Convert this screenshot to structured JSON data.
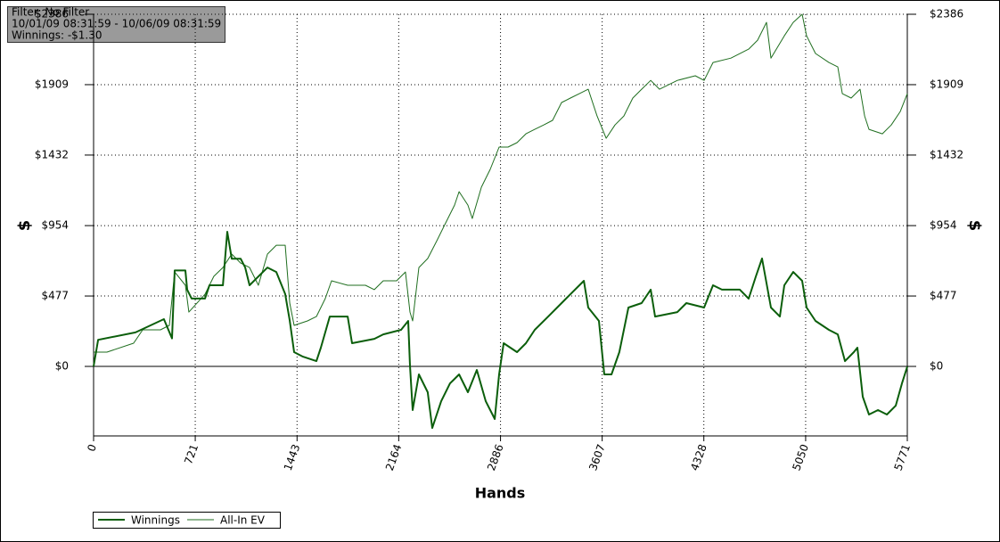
{
  "chart_data": {
    "type": "line",
    "annotations": [
      "Filter: No Filter",
      "10/01/09 08:31:59 - 10/06/09 08:31:59",
      "Winnings: -$1.30"
    ],
    "xlabel": "Hands",
    "ylabel": "$",
    "y2label": "$",
    "xlim": [
      0,
      5771
    ],
    "xticks": [
      0,
      721,
      1443,
      2164,
      2886,
      3607,
      4328,
      5050,
      5771
    ],
    "ylim": [
      -471,
      2386
    ],
    "yticks": [
      {
        "value": 0,
        "label": "$0"
      },
      {
        "value": 477,
        "label": "$477"
      },
      {
        "value": 954,
        "label": "$954"
      },
      {
        "value": 1432,
        "label": "$1432"
      },
      {
        "value": 1909,
        "label": "$1909"
      },
      {
        "value": 2386,
        "label": "$2386"
      }
    ],
    "y2lim": [
      -471,
      2386
    ],
    "y2ticks": [
      {
        "value": 0,
        "label": "$0"
      },
      {
        "value": 477,
        "label": "$477"
      },
      {
        "value": 954,
        "label": "$954"
      },
      {
        "value": 1432,
        "label": "$1432"
      },
      {
        "value": 1909,
        "label": "$1909"
      },
      {
        "value": 2386,
        "label": "$2386"
      }
    ],
    "grid": true,
    "legend": "bottom-left",
    "series": [
      {
        "name": "Winnings",
        "color": "#0b5e0b",
        "width": 2,
        "x": [
          0,
          32,
          297,
          499,
          556,
          575,
          651,
          664,
          695,
          790,
          822,
          917,
          948,
          980,
          1043,
          1075,
          1106,
          1233,
          1296,
          1359,
          1391,
          1422,
          1485,
          1580,
          1612,
          1675,
          1802,
          1833,
          1991,
          2054,
          2181,
          2231,
          2244,
          2263,
          2307,
          2370,
          2402,
          2465,
          2528,
          2592,
          2655,
          2718,
          2781,
          2845,
          2876,
          2908,
          3003,
          3066,
          3129,
          3224,
          3319,
          3382,
          3477,
          3508,
          3584,
          3622,
          3673,
          3729,
          3793,
          3887,
          3951,
          3982,
          4140,
          4204,
          4330,
          4393,
          4456,
          4583,
          4646,
          4697,
          4741,
          4804,
          4867,
          4899,
          4962,
          5025,
          5057,
          5120,
          5215,
          5278,
          5329,
          5392,
          5417,
          5455,
          5499,
          5563,
          5626,
          5689,
          5733,
          5771
        ],
        "values": [
          0,
          180,
          230,
          320,
          190,
          650,
          650,
          520,
          460,
          460,
          550,
          550,
          912,
          730,
          730,
          670,
          550,
          670,
          640,
          490,
          310,
          97,
          66,
          36,
          127,
          338,
          338,
          157,
          187,
          217,
          248,
          308,
          6,
          -296,
          -54,
          -175,
          -417,
          -236,
          -115,
          -54,
          -175,
          -24,
          -236,
          -356,
          -54,
          157,
          97,
          157,
          248,
          338,
          429,
          489,
          580,
          399,
          308,
          -54,
          -54,
          97,
          399,
          429,
          520,
          338,
          368,
          429,
          399,
          550,
          520,
          520,
          459,
          610,
          731,
          399,
          338,
          550,
          640,
          580,
          399,
          308,
          248,
          217,
          36,
          97,
          127,
          -205,
          -326,
          -296,
          -326,
          -266,
          -115,
          -1.3
        ]
      },
      {
        "name": "All-In EV",
        "color": "#1f6e1f",
        "width": 1,
        "x": [
          0,
          95,
          284,
          348,
          474,
          537,
          575,
          651,
          676,
          790,
          853,
          917,
          980,
          1043,
          1106,
          1169,
          1233,
          1264,
          1296,
          1359,
          1391,
          1422,
          1517,
          1580,
          1643,
          1688,
          1802,
          1928,
          1991,
          2054,
          2149,
          2212,
          2244,
          2263,
          2307,
          2370,
          2434,
          2497,
          2560,
          2592,
          2655,
          2686,
          2750,
          2813,
          2876,
          2939,
          3003,
          3066,
          3129,
          3192,
          3255,
          3319,
          3382,
          3445,
          3508,
          3571,
          3635,
          3698,
          3761,
          3824,
          3887,
          3951,
          4014,
          4140,
          4267,
          4330,
          4393,
          4520,
          4646,
          4709,
          4772,
          4804,
          4899,
          4962,
          5025,
          5057,
          5120,
          5215,
          5278,
          5310,
          5373,
          5436,
          5468,
          5499,
          5594,
          5657,
          5721,
          5771
        ],
        "values": [
          97,
          97,
          157,
          248,
          248,
          278,
          640,
          550,
          368,
          489,
          610,
          670,
          761,
          700,
          670,
          550,
          761,
          791,
          821,
          821,
          429,
          278,
          308,
          338,
          459,
          580,
          550,
          550,
          520,
          580,
          580,
          640,
          368,
          308,
          670,
          731,
          851,
          972,
          1093,
          1184,
          1093,
          1002,
          1214,
          1335,
          1486,
          1486,
          1516,
          1576,
          1606,
          1636,
          1667,
          1788,
          1818,
          1848,
          1878,
          1697,
          1546,
          1636,
          1697,
          1818,
          1878,
          1938,
          1878,
          1938,
          1969,
          1938,
          2059,
          2089,
          2150,
          2210,
          2331,
          2089,
          2240,
          2331,
          2386,
          2240,
          2120,
          2059,
          2029,
          1848,
          1818,
          1878,
          1697,
          1606,
          1576,
          1636,
          1727,
          1848
        ]
      }
    ]
  }
}
